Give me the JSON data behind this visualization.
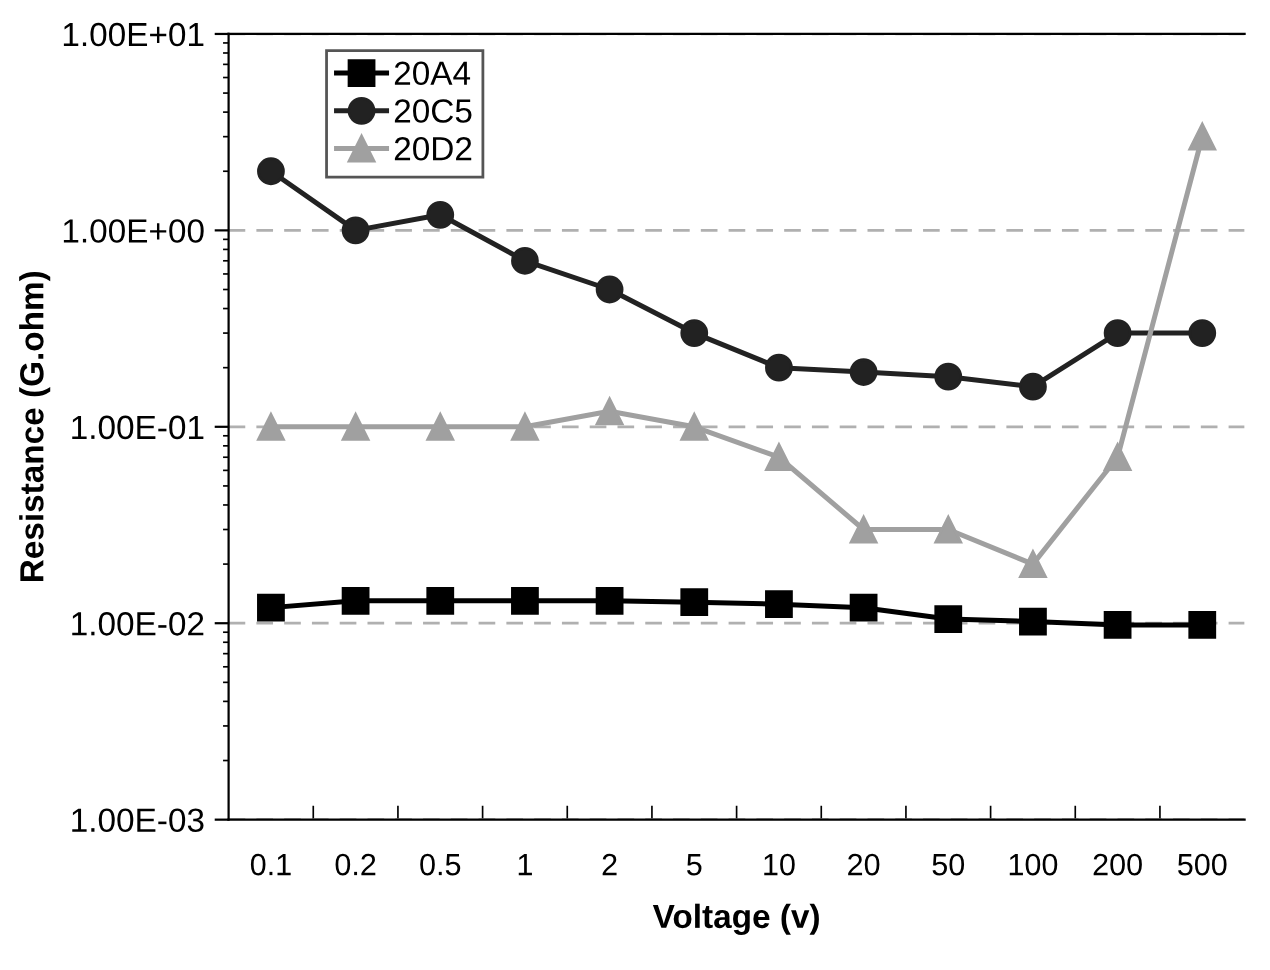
{
  "chart_data": {
    "type": "line",
    "xlabel": "Voltage (v)",
    "ylabel": "Resistance (G.ohm)",
    "categories": [
      "0.1",
      "0.2",
      "0.5",
      "1",
      "2",
      "5",
      "10",
      "20",
      "50",
      "100",
      "200",
      "500"
    ],
    "series": [
      {
        "name": "20A4",
        "color": "#000000",
        "marker": "square",
        "values": [
          0.012,
          0.013,
          0.013,
          0.013,
          0.013,
          0.0128,
          0.0125,
          0.012,
          0.0105,
          0.0102,
          0.0098,
          0.0098
        ]
      },
      {
        "name": "20C5",
        "color": "#222222",
        "marker": "circle",
        "values": [
          2,
          1,
          1.2,
          0.7,
          0.5,
          0.3,
          0.2,
          0.19,
          0.18,
          0.16,
          0.3,
          0.3
        ]
      },
      {
        "name": "20D2",
        "color": "#a0a0a0",
        "marker": "triangle",
        "values": [
          0.1,
          0.1,
          0.1,
          0.1,
          0.12,
          0.1,
          0.07,
          0.03,
          0.03,
          0.02,
          0.07,
          3
        ]
      }
    ],
    "log": "y",
    "ylim": [
      0.001,
      10
    ],
    "yticks": [
      {
        "value": 0.001,
        "label": "1.00E-03"
      },
      {
        "value": 0.01,
        "label": "1.00E-02"
      },
      {
        "value": 0.1,
        "label": "1.00E-01"
      },
      {
        "value": 1,
        "label": "1.00E+00"
      },
      {
        "value": 10,
        "label": "1.00E+01"
      }
    ],
    "grid": "y",
    "legend": "top left",
    "line_style": "solid"
  }
}
